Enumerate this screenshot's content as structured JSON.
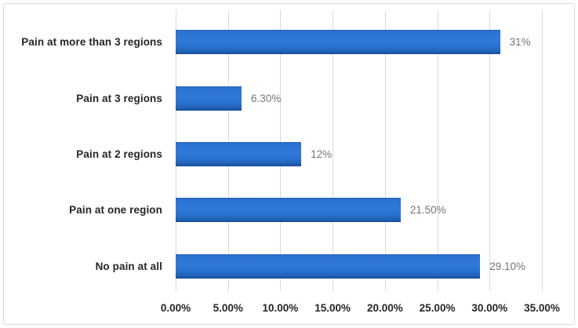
{
  "chart": {
    "background_color": "#FFFFFF",
    "border_color": "#D9D9D9",
    "gridline_color": "#D9D9D9",
    "bar_color": "#2E75D6",
    "bar_edge_color": "#174E95",
    "category_label_color": "#262626",
    "value_label_color": "#757575",
    "axis_label_color": "#262626"
  },
  "chart_data": {
    "type": "bar",
    "orientation": "horizontal",
    "title": "",
    "categories": [
      "Pain at more than 3 regions",
      "Pain at 3 regions",
      "Pain at 2 regions",
      "Pain at one region",
      "No pain at all"
    ],
    "values": [
      31,
      6.3,
      12,
      21.5,
      29.1
    ],
    "value_labels": [
      "31%",
      "6.30%",
      "12%",
      "21.50%",
      "29.10%"
    ],
    "x_tick_labels": [
      "0.00%",
      "5.00%",
      "10.00%",
      "15.00%",
      "20.00%",
      "25.00%",
      "30.00%",
      "35.00%"
    ],
    "x_min": 0,
    "x_max": 35,
    "gridlines": "vertical",
    "legend": "none",
    "data_labels": "outside-end"
  }
}
